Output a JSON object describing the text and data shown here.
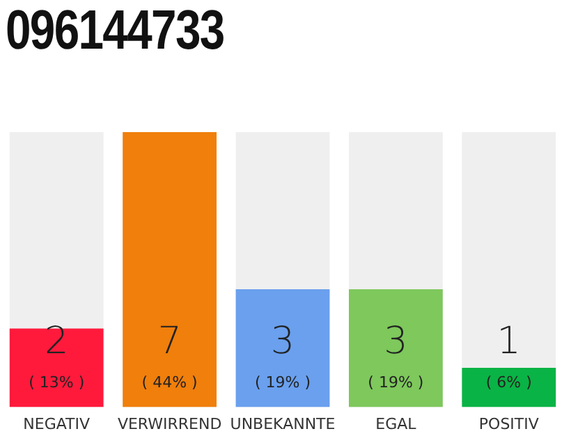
{
  "chart_data": {
    "type": "bar",
    "title": "096144733",
    "categories": [
      "NEGATIV",
      "VERWIRREND",
      "UNBEKANNTE",
      "EGAL",
      "POSITIV"
    ],
    "values": [
      2,
      7,
      3,
      3,
      1
    ],
    "colors": [
      "#ff1a3c",
      "#f07f0c",
      "#6aa0ee",
      "#7ec85c",
      "#0ab345"
    ],
    "value_labels": [
      "2\n( 13% )",
      "7\n( 44% )",
      "3\n( 19% )",
      "3\n( 19% )",
      "1\n( 6% )"
    ],
    "ylim": [
      0,
      7
    ],
    "tick_labels": "x",
    "grid": false,
    "legend": false
  }
}
